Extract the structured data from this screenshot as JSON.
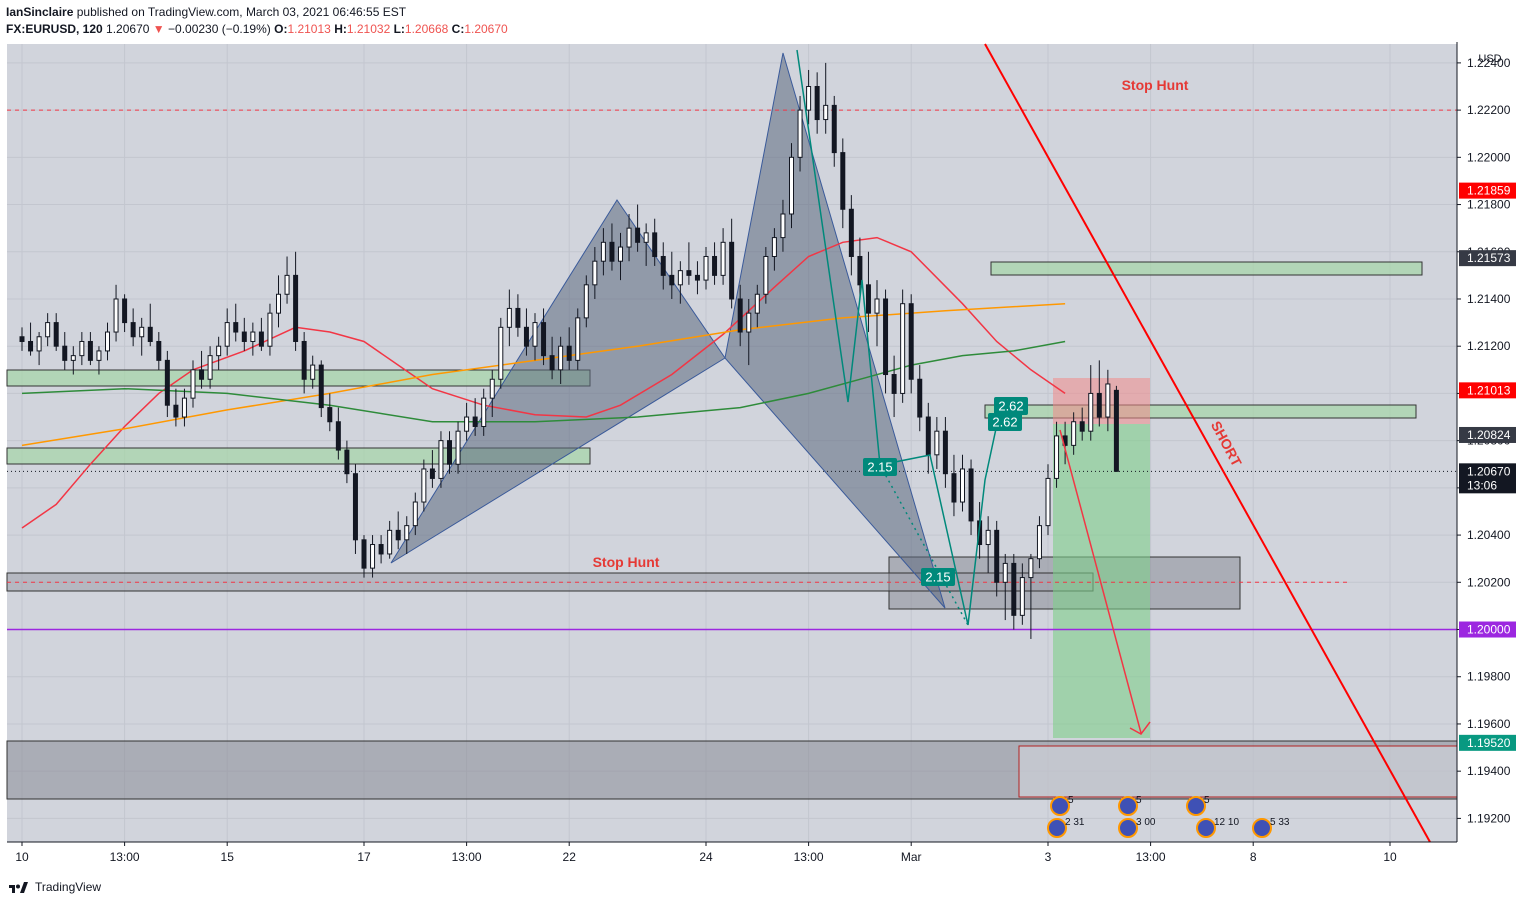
{
  "header": {
    "author": "IanSinclaire",
    "published_text": "published on TradingView.com, March 03, 2021 06:46:55 EST",
    "symbol": "FX:EURUSD, 120",
    "last": "1.20670",
    "change_arrow": "▼",
    "change": "−0.00230 (−0.19%)",
    "o_label": "O:",
    "o": "1.21013",
    "h_label": "H:",
    "h": "1.21032",
    "l_label": "L:",
    "l": "1.20668",
    "c_label": "C:",
    "c": "1.20670"
  },
  "footer": {
    "brand": "TradingView",
    "logo_icon": "tradingview-logo-icon"
  },
  "chart_data": {
    "type": "candlestick",
    "currency": "USD",
    "ylim": [
      1.191,
      1.2248
    ],
    "y_ticks": [
      "1.19200",
      "1.19400",
      "1.19600",
      "1.19800",
      "1.20000",
      "1.20200",
      "1.20400",
      "1.20600",
      "1.20800",
      "1.21000",
      "1.21200",
      "1.21400",
      "1.21600",
      "1.21800",
      "1.22000",
      "1.22200",
      "1.22400"
    ],
    "x_ticks": [
      {
        "i": 0,
        "label": "10"
      },
      {
        "i": 12,
        "label": "13:00"
      },
      {
        "i": 24,
        "label": "15"
      },
      {
        "i": 40,
        "label": "17"
      },
      {
        "i": 52,
        "label": "13:00"
      },
      {
        "i": 64,
        "label": "22"
      },
      {
        "i": 80,
        "label": "24"
      },
      {
        "i": 92,
        "label": "13:00"
      },
      {
        "i": 104,
        "label": "Mar"
      },
      {
        "i": 120,
        "label": "3"
      },
      {
        "i": 132,
        "label": "13:00"
      },
      {
        "i": 144,
        "label": "8"
      },
      {
        "i": 160,
        "label": "10"
      }
    ],
    "price_labels": [
      {
        "value": 1.21859,
        "text": "1.21859",
        "color": "#ff0000"
      },
      {
        "value": 1.21573,
        "text": "1.21573",
        "color": "#363a45"
      },
      {
        "value": 1.21013,
        "text": "1.21013",
        "color": "#ff0000"
      },
      {
        "value": 1.20824,
        "text": "1.20824",
        "color": "#363a45"
      },
      {
        "value": 1.2067,
        "text": "1.20670",
        "sub": "13:06",
        "color": "#131722"
      },
      {
        "value": 1.2,
        "text": "1.20000",
        "color": "#9c27e0"
      },
      {
        "value": 1.1952,
        "text": "1.19520",
        "color": "#089981"
      }
    ],
    "annotations": {
      "stop_hunt_upper": {
        "text": "Stop Hunt",
        "price": 1.222
      },
      "stop_hunt_lower": {
        "text": "Stop Hunt",
        "price": 1.202
      },
      "short_label": {
        "text": "SHORT"
      },
      "pattern_labels": [
        "2.62",
        "2.62",
        "2.15",
        "2.15"
      ],
      "events": [
        "5",
        "2 31",
        "5",
        "3 00",
        "5",
        "12 10",
        "5 33"
      ]
    },
    "candles": [
      [
        1.2124,
        1.2128,
        1.2118,
        1.2122
      ],
      [
        1.2122,
        1.213,
        1.2116,
        1.2118
      ],
      [
        1.2118,
        1.2126,
        1.2112,
        1.2124
      ],
      [
        1.2124,
        1.2134,
        1.212,
        1.213
      ],
      [
        1.213,
        1.2134,
        1.2118,
        1.212
      ],
      [
        1.212,
        1.2126,
        1.211,
        1.2114
      ],
      [
        1.2114,
        1.212,
        1.2108,
        1.2116
      ],
      [
        1.2116,
        1.2126,
        1.2112,
        1.2122
      ],
      [
        1.2122,
        1.2126,
        1.2112,
        1.2114
      ],
      [
        1.2114,
        1.212,
        1.2108,
        1.2118
      ],
      [
        1.2118,
        1.213,
        1.2114,
        1.2126
      ],
      [
        1.2126,
        1.2146,
        1.2122,
        1.214
      ],
      [
        1.214,
        1.2142,
        1.2126,
        1.213
      ],
      [
        1.213,
        1.2136,
        1.212,
        1.2124
      ],
      [
        1.2124,
        1.2132,
        1.2116,
        1.2128
      ],
      [
        1.2128,
        1.2138,
        1.212,
        1.2122
      ],
      [
        1.2122,
        1.2126,
        1.211,
        1.2114
      ],
      [
        1.2114,
        1.2118,
        1.209,
        1.2095
      ],
      [
        1.2095,
        1.2102,
        1.2086,
        1.209
      ],
      [
        1.209,
        1.2102,
        1.2086,
        1.2098
      ],
      [
        1.2098,
        1.2114,
        1.2094,
        1.211
      ],
      [
        1.211,
        1.2118,
        1.2102,
        1.2106
      ],
      [
        1.2106,
        1.212,
        1.2102,
        1.2116
      ],
      [
        1.2116,
        1.2124,
        1.211,
        1.212
      ],
      [
        1.212,
        1.2136,
        1.2116,
        1.213
      ],
      [
        1.213,
        1.2138,
        1.2122,
        1.2126
      ],
      [
        1.2126,
        1.2132,
        1.2118,
        1.2122
      ],
      [
        1.2122,
        1.213,
        1.2116,
        1.2126
      ],
      [
        1.2126,
        1.2132,
        1.2118,
        1.212
      ],
      [
        1.212,
        1.2138,
        1.2116,
        1.2134
      ],
      [
        1.2134,
        1.215,
        1.2128,
        1.2142
      ],
      [
        1.2142,
        1.2158,
        1.2138,
        1.215
      ],
      [
        1.215,
        1.216,
        1.2118,
        1.2122
      ],
      [
        1.2122,
        1.2126,
        1.21,
        1.2106
      ],
      [
        1.2106,
        1.2116,
        1.2102,
        1.2112
      ],
      [
        1.2112,
        1.2114,
        1.209,
        1.2094
      ],
      [
        1.2094,
        1.21,
        1.2084,
        1.2088
      ],
      [
        1.2088,
        1.2094,
        1.2072,
        1.2076
      ],
      [
        1.2076,
        1.208,
        1.2062,
        1.2066
      ],
      [
        1.2066,
        1.207,
        1.2032,
        1.2038
      ],
      [
        1.2038,
        1.204,
        1.2022,
        1.2026
      ],
      [
        1.2026,
        1.204,
        1.2022,
        1.2036
      ],
      [
        1.2036,
        1.204,
        1.2028,
        1.2032
      ],
      [
        1.2032,
        1.2046,
        1.203,
        1.2042
      ],
      [
        1.2042,
        1.205,
        1.2034,
        1.2038
      ],
      [
        1.2038,
        1.2048,
        1.2032,
        1.2044
      ],
      [
        1.2044,
        1.2058,
        1.204,
        1.2054
      ],
      [
        1.2054,
        1.2072,
        1.205,
        1.2068
      ],
      [
        1.2068,
        1.2076,
        1.206,
        1.2064
      ],
      [
        1.2064,
        1.2084,
        1.206,
        1.208
      ],
      [
        1.208,
        1.2084,
        1.2066,
        1.207
      ],
      [
        1.207,
        1.2088,
        1.2066,
        1.2084
      ],
      [
        1.2084,
        1.2096,
        1.208,
        1.209
      ],
      [
        1.209,
        1.2098,
        1.2082,
        1.2086
      ],
      [
        1.2086,
        1.2102,
        1.2082,
        1.2098
      ],
      [
        1.2098,
        1.211,
        1.209,
        1.2106
      ],
      [
        1.2106,
        1.2132,
        1.2102,
        1.2128
      ],
      [
        1.2128,
        1.2144,
        1.212,
        1.2136
      ],
      [
        1.2136,
        1.2142,
        1.2124,
        1.2128
      ],
      [
        1.2128,
        1.2136,
        1.2116,
        1.212
      ],
      [
        1.212,
        1.2134,
        1.2114,
        1.213
      ],
      [
        1.213,
        1.2136,
        1.2112,
        1.2116
      ],
      [
        1.2116,
        1.2124,
        1.2106,
        1.211
      ],
      [
        1.211,
        1.2124,
        1.2104,
        1.212
      ],
      [
        1.212,
        1.2128,
        1.211,
        1.2114
      ],
      [
        1.2114,
        1.2136,
        1.211,
        1.2132
      ],
      [
        1.2132,
        1.215,
        1.2128,
        1.2146
      ],
      [
        1.2146,
        1.2162,
        1.214,
        1.2156
      ],
      [
        1.2156,
        1.217,
        1.215,
        1.2164
      ],
      [
        1.2164,
        1.2172,
        1.2152,
        1.2156
      ],
      [
        1.2156,
        1.2168,
        1.2148,
        1.2162
      ],
      [
        1.2162,
        1.2176,
        1.2156,
        1.217
      ],
      [
        1.217,
        1.218,
        1.216,
        1.2164
      ],
      [
        1.2164,
        1.2172,
        1.2154,
        1.2168
      ],
      [
        1.2168,
        1.2174,
        1.2154,
        1.2158
      ],
      [
        1.2158,
        1.2164,
        1.2144,
        1.215
      ],
      [
        1.215,
        1.216,
        1.214,
        1.2146
      ],
      [
        1.2146,
        1.2156,
        1.2138,
        1.2152
      ],
      [
        1.2152,
        1.2164,
        1.2146,
        1.215
      ],
      [
        1.215,
        1.2156,
        1.2142,
        1.2148
      ],
      [
        1.2148,
        1.2162,
        1.2144,
        1.2158
      ],
      [
        1.2158,
        1.2164,
        1.2146,
        1.215
      ],
      [
        1.215,
        1.217,
        1.2146,
        1.2164
      ],
      [
        1.2164,
        1.2174,
        1.2136,
        1.214
      ],
      [
        1.214,
        1.2146,
        1.212,
        1.2126
      ],
      [
        1.2126,
        1.214,
        1.2112,
        1.2134
      ],
      [
        1.2134,
        1.2146,
        1.2128,
        1.2142
      ],
      [
        1.2142,
        1.2162,
        1.2138,
        1.2158
      ],
      [
        1.2158,
        1.217,
        1.2152,
        1.2166
      ],
      [
        1.2166,
        1.2182,
        1.216,
        1.2176
      ],
      [
        1.2176,
        1.2206,
        1.217,
        1.22
      ],
      [
        1.22,
        1.2226,
        1.2194,
        1.222
      ],
      [
        1.222,
        1.2237,
        1.2214,
        1.223
      ],
      [
        1.223,
        1.2236,
        1.221,
        1.2216
      ],
      [
        1.2216,
        1.224,
        1.221,
        1.2222
      ],
      [
        1.2222,
        1.2226,
        1.2196,
        1.2202
      ],
      [
        1.2202,
        1.2208,
        1.217,
        1.2178
      ],
      [
        1.2178,
        1.2184,
        1.215,
        1.2158
      ],
      [
        1.2158,
        1.2166,
        1.214,
        1.2146
      ],
      [
        1.2146,
        1.216,
        1.2126,
        1.2134
      ],
      [
        1.2134,
        1.2148,
        1.212,
        1.214
      ],
      [
        1.214,
        1.2144,
        1.21,
        1.2108
      ],
      [
        1.2108,
        1.2116,
        1.209,
        1.21
      ],
      [
        1.21,
        1.2144,
        1.2096,
        1.2138
      ],
      [
        1.2138,
        1.2142,
        1.21,
        1.2106
      ],
      [
        1.2106,
        1.2112,
        1.2084,
        1.209
      ],
      [
        1.209,
        1.2096,
        1.2066,
        1.2074
      ],
      [
        1.2074,
        1.209,
        1.2068,
        1.2084
      ],
      [
        1.2084,
        1.209,
        1.206,
        1.2066
      ],
      [
        1.2066,
        1.2074,
        1.2048,
        1.2054
      ],
      [
        1.2054,
        1.2074,
        1.205,
        1.2068
      ],
      [
        1.2068,
        1.2072,
        1.204,
        1.2046
      ],
      [
        1.2046,
        1.2054,
        1.203,
        1.2036
      ],
      [
        1.2036,
        1.2048,
        1.2024,
        1.2042
      ],
      [
        1.2042,
        1.2046,
        1.2014,
        1.202
      ],
      [
        1.202,
        1.2032,
        1.2004,
        1.2028
      ],
      [
        1.2028,
        1.2032,
        1.2,
        1.2006
      ],
      [
        1.2006,
        1.2028,
        1.2002,
        1.2022
      ],
      [
        1.2022,
        1.2032,
        1.1996,
        1.203
      ],
      [
        1.203,
        1.2048,
        1.2026,
        1.2044
      ],
      [
        1.2044,
        1.207,
        1.204,
        1.2064
      ],
      [
        1.2064,
        1.2088,
        1.206,
        1.2082
      ],
      [
        1.2082,
        1.2088,
        1.207,
        1.2078
      ],
      [
        1.2078,
        1.2092,
        1.2074,
        1.2088
      ],
      [
        1.2088,
        1.2094,
        1.208,
        1.2084
      ],
      [
        1.2084,
        1.2112,
        1.208,
        1.21
      ],
      [
        1.21,
        1.2114,
        1.2086,
        1.209
      ],
      [
        1.209,
        1.211,
        1.2084,
        1.2104
      ],
      [
        1.21013,
        1.21032,
        1.20668,
        1.2067
      ]
    ],
    "moving_averages": [
      {
        "color": "#f23645",
        "points": [
          [
            0,
            1.2043
          ],
          [
            4,
            1.2053
          ],
          [
            8,
            1.207
          ],
          [
            12,
            1.2086
          ],
          [
            16,
            1.21
          ],
          [
            20,
            1.211
          ],
          [
            26,
            1.2118
          ],
          [
            32,
            1.2128
          ],
          [
            36,
            1.2126
          ],
          [
            40,
            1.2122
          ],
          [
            44,
            1.2112
          ],
          [
            48,
            1.2102
          ],
          [
            54,
            1.2095
          ],
          [
            60,
            1.2091
          ],
          [
            66,
            1.209
          ],
          [
            70,
            1.2095
          ],
          [
            76,
            1.2108
          ],
          [
            82,
            1.2125
          ],
          [
            88,
            1.2145
          ],
          [
            92,
            1.2158
          ],
          [
            96,
            1.2164
          ],
          [
            100,
            1.2166
          ],
          [
            104,
            1.216
          ],
          [
            110,
            1.2138
          ],
          [
            114,
            1.2122
          ],
          [
            118,
            1.211
          ],
          [
            122,
            1.21
          ]
        ]
      },
      {
        "color": "#ff9800",
        "points": [
          [
            0,
            1.2078
          ],
          [
            12,
            1.2085
          ],
          [
            24,
            1.2093
          ],
          [
            36,
            1.21
          ],
          [
            48,
            1.2108
          ],
          [
            60,
            1.2114
          ],
          [
            72,
            1.212
          ],
          [
            84,
            1.2127
          ],
          [
            96,
            1.2132
          ],
          [
            108,
            1.2135
          ],
          [
            122,
            1.2138
          ]
        ]
      },
      {
        "color": "#2e8b3a",
        "points": [
          [
            0,
            1.21
          ],
          [
            12,
            1.2102
          ],
          [
            24,
            1.21
          ],
          [
            36,
            1.2095
          ],
          [
            48,
            1.2088
          ],
          [
            60,
            1.2088
          ],
          [
            72,
            1.209
          ],
          [
            84,
            1.2094
          ],
          [
            92,
            1.21
          ],
          [
            98,
            1.2106
          ],
          [
            104,
            1.2112
          ],
          [
            110,
            1.2116
          ],
          [
            116,
            1.2118
          ],
          [
            122,
            1.2122
          ]
        ]
      }
    ]
  }
}
